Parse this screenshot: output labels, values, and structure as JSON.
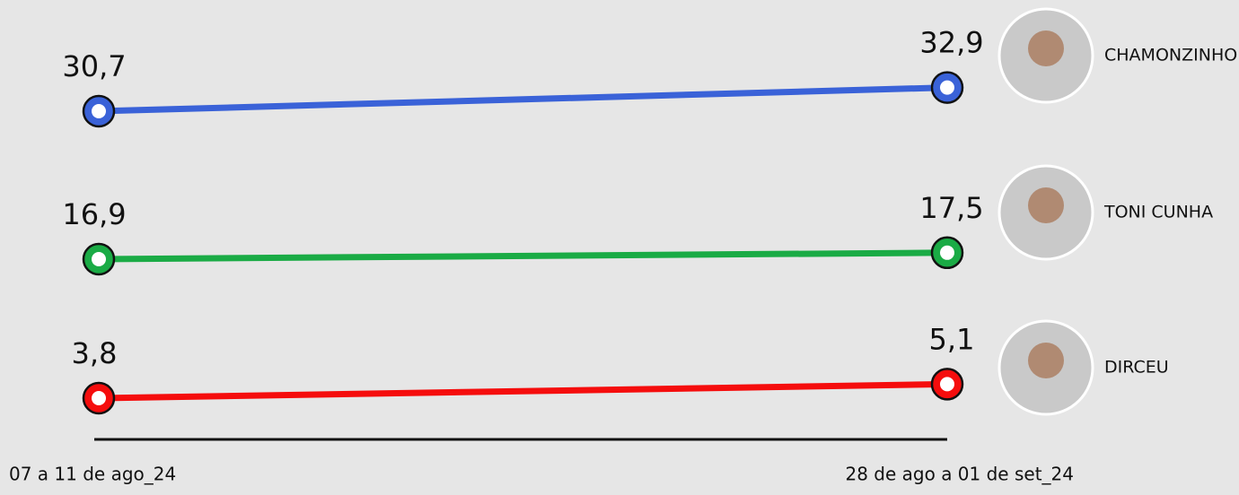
{
  "chart_data": {
    "type": "line",
    "categories": [
      "07 a 11 de ago_24",
      "28 de ago a 01 de set_24"
    ],
    "series": [
      {
        "name": "CHAMONZINHO",
        "color": "#3a62d8",
        "values": [
          30.7,
          32.9
        ],
        "value_labels": [
          "30,7",
          "32,9"
        ]
      },
      {
        "name": "TONI CUNHA",
        "color": "#1aab45",
        "values": [
          16.9,
          17.5
        ],
        "value_labels": [
          "16,9",
          "17,5"
        ]
      },
      {
        "name": "DIRCEU",
        "color": "#f50d0d",
        "values": [
          3.8,
          5.1
        ],
        "value_labels": [
          "3,8",
          "5,1"
        ]
      }
    ]
  }
}
